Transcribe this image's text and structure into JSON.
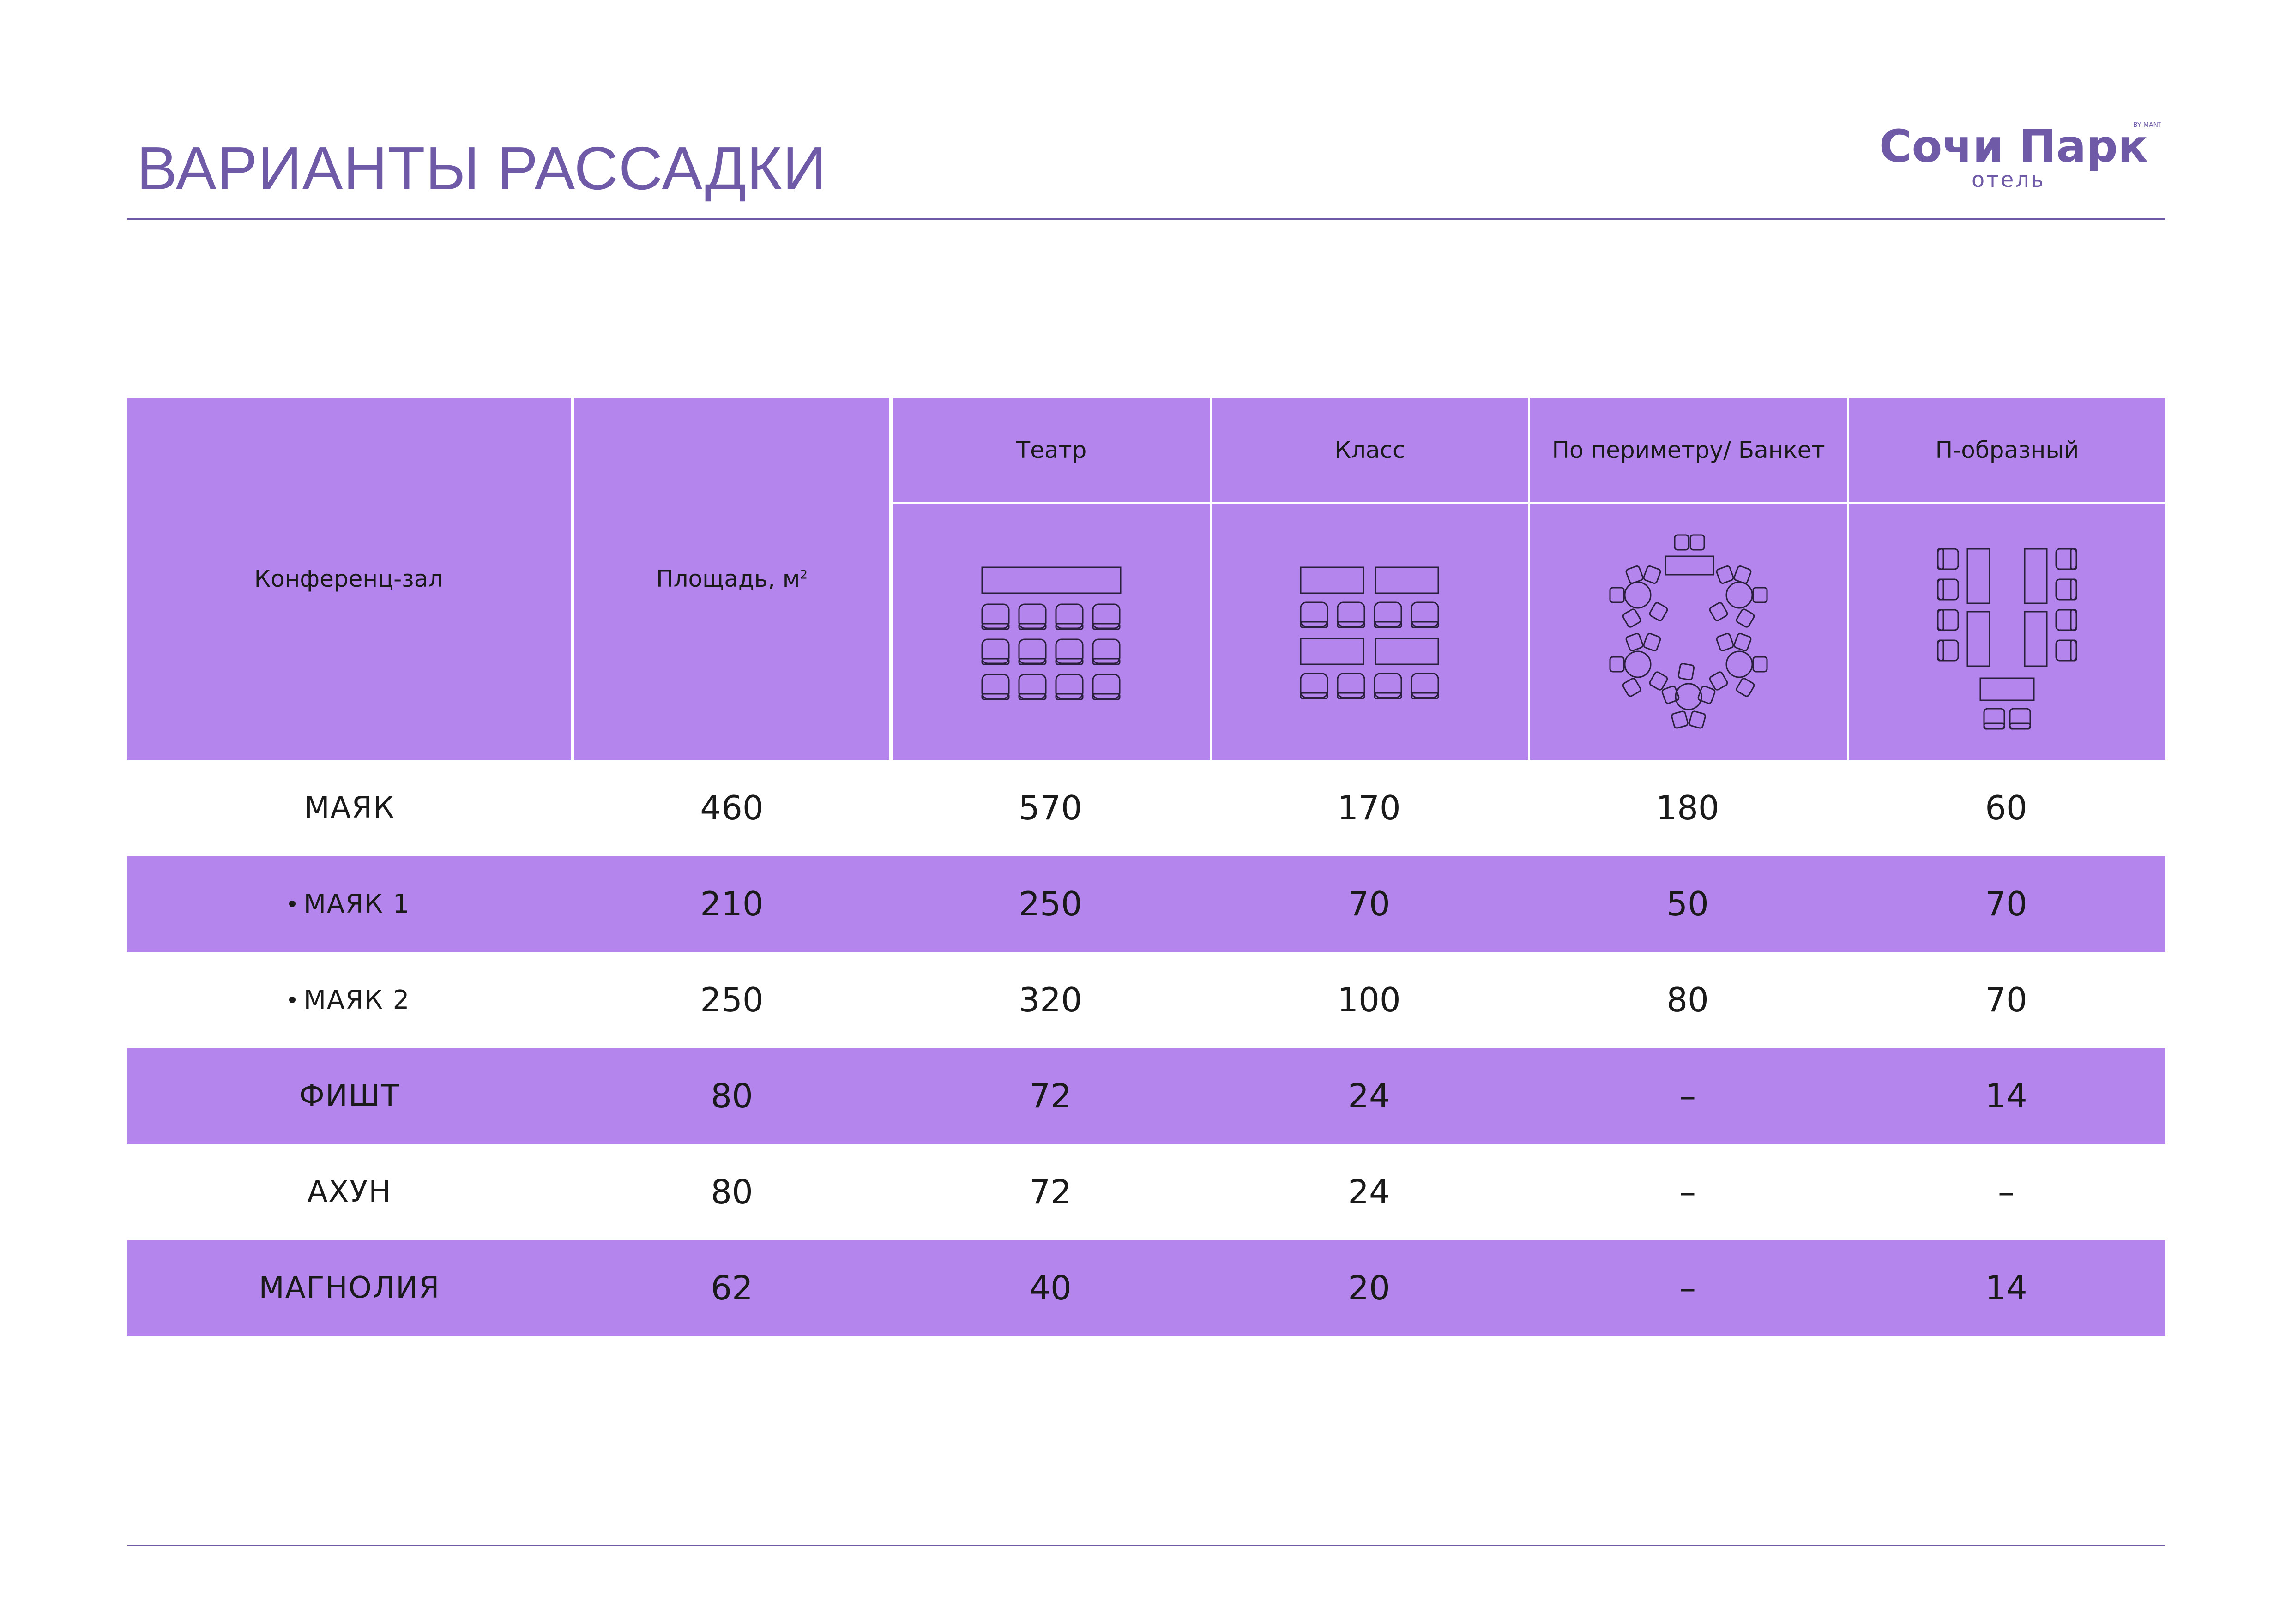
{
  "page": {
    "title": "ВАРИАНТЫ РАССАДКИ"
  },
  "logo": {
    "name": "Сочи Парк",
    "tagline": "BY MANTERA",
    "subtitle": "отель"
  },
  "colors": {
    "accent": "#6F5AA8",
    "table_fill": "#B485EC",
    "text": "#1a1a1a",
    "background": "#ffffff"
  },
  "table": {
    "headers": {
      "hall": "Конференц-зал",
      "area": "Площадь, м",
      "area_sup": "2",
      "theatre": "Театр",
      "class": "Класс",
      "perimeter": "По периметру/ Банкет",
      "u_shape": "П-образный"
    },
    "icons": [
      "theatre-layout-icon",
      "class-layout-icon",
      "banquet-layout-icon",
      "u-shape-layout-icon"
    ],
    "rows": [
      {
        "name": "МАЯК",
        "sub": false,
        "area": "460",
        "theatre": "570",
        "class": "170",
        "perimeter": "180",
        "u_shape": "60"
      },
      {
        "name": "МАЯК 1",
        "sub": true,
        "area": "210",
        "theatre": "250",
        "class": "70",
        "perimeter": "50",
        "u_shape": "70"
      },
      {
        "name": "МАЯК 2",
        "sub": true,
        "area": "250",
        "theatre": "320",
        "class": "100",
        "perimeter": "80",
        "u_shape": "70"
      },
      {
        "name": "ФИШТ",
        "sub": false,
        "area": "80",
        "theatre": "72",
        "class": "24",
        "perimeter": "–",
        "u_shape": "14"
      },
      {
        "name": "АХУН",
        "sub": false,
        "area": "80",
        "theatre": "72",
        "class": "24",
        "perimeter": "–",
        "u_shape": "–"
      },
      {
        "name": "МАГНОЛИЯ",
        "sub": false,
        "area": "62",
        "theatre": "40",
        "class": "20",
        "perimeter": "–",
        "u_shape": "14"
      }
    ]
  }
}
